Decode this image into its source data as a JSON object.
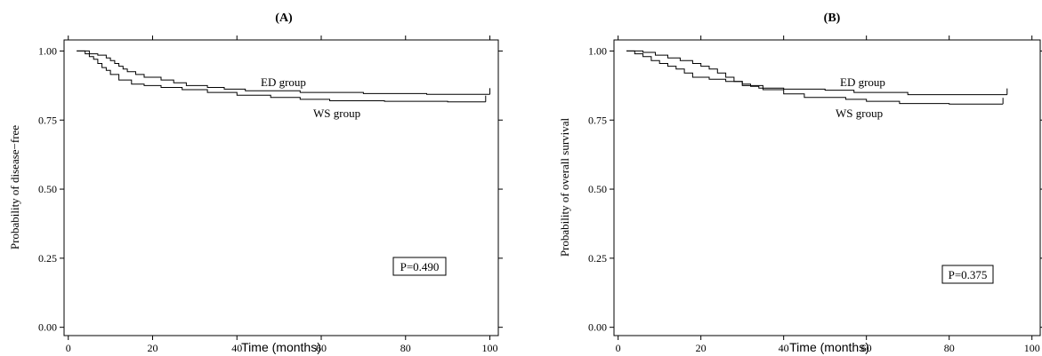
{
  "chart_data": [
    {
      "type": "line",
      "title": "(A)",
      "xlabel": "Time (months)",
      "ylabel": "Probability of disease−free",
      "xlim": [
        -1,
        102
      ],
      "ylim": [
        -0.03,
        1.04
      ],
      "x_ticks": [
        "0",
        "20",
        "40",
        "60",
        "80",
        "100"
      ],
      "y_ticks": [
        "0.00",
        "0.25",
        "0.50",
        "0.75",
        "1.00"
      ],
      "x_tick_values": [
        0,
        20,
        40,
        60,
        80,
        100
      ],
      "y_tick_values": [
        0,
        0.25,
        0.5,
        0.75,
        1.0
      ],
      "annotation": "P=0.490",
      "series": [
        {
          "name": "ED group",
          "x": [
            2,
            5,
            7,
            9,
            10,
            11,
            12,
            13,
            14,
            16,
            18,
            22,
            25,
            28,
            33,
            37,
            42,
            55,
            70,
            85,
            100
          ],
          "y": [
            1.0,
            0.99,
            0.985,
            0.975,
            0.965,
            0.955,
            0.945,
            0.935,
            0.925,
            0.915,
            0.905,
            0.895,
            0.885,
            0.875,
            0.868,
            0.862,
            0.856,
            0.85,
            0.846,
            0.843,
            0.843
          ]
        },
        {
          "name": "WS group",
          "x": [
            2,
            4,
            5,
            6,
            7,
            8,
            9,
            10,
            12,
            15,
            18,
            22,
            27,
            33,
            40,
            48,
            55,
            62,
            75,
            90,
            99
          ],
          "y": [
            1.0,
            0.99,
            0.98,
            0.97,
            0.955,
            0.94,
            0.93,
            0.915,
            0.895,
            0.88,
            0.875,
            0.868,
            0.86,
            0.85,
            0.84,
            0.832,
            0.825,
            0.82,
            0.818,
            0.816,
            0.816
          ]
        }
      ]
    },
    {
      "type": "line",
      "title": "(B)",
      "xlabel": "Time (months)",
      "ylabel": "Probability of overall survival",
      "xlim": [
        -1,
        102
      ],
      "ylim": [
        -0.03,
        1.04
      ],
      "x_ticks": [
        "0",
        "20",
        "40",
        "60",
        "80",
        "100"
      ],
      "y_ticks": [
        "0.00",
        "0.25",
        "0.50",
        "0.75",
        "1.00"
      ],
      "x_tick_values": [
        0,
        20,
        40,
        60,
        80,
        100
      ],
      "y_tick_values": [
        0,
        0.25,
        0.5,
        0.75,
        1.0
      ],
      "annotation": "P=0.375",
      "series": [
        {
          "name": "ED group",
          "x": [
            2,
            6,
            9,
            12,
            15,
            18,
            20,
            22,
            24,
            26,
            28,
            30,
            32,
            34,
            40,
            50,
            57,
            70,
            94
          ],
          "y": [
            1.0,
            0.995,
            0.985,
            0.975,
            0.965,
            0.955,
            0.945,
            0.935,
            0.92,
            0.905,
            0.89,
            0.88,
            0.872,
            0.866,
            0.862,
            0.858,
            0.85,
            0.842,
            0.842
          ]
        },
        {
          "name": "WS group",
          "x": [
            2,
            4,
            6,
            8,
            10,
            12,
            14,
            16,
            18,
            22,
            26,
            30,
            35,
            40,
            45,
            55,
            60,
            68,
            80,
            93
          ],
          "y": [
            1.0,
            0.99,
            0.98,
            0.965,
            0.955,
            0.945,
            0.935,
            0.92,
            0.905,
            0.898,
            0.89,
            0.875,
            0.86,
            0.845,
            0.832,
            0.825,
            0.818,
            0.81,
            0.808,
            0.808
          ]
        }
      ]
    }
  ]
}
